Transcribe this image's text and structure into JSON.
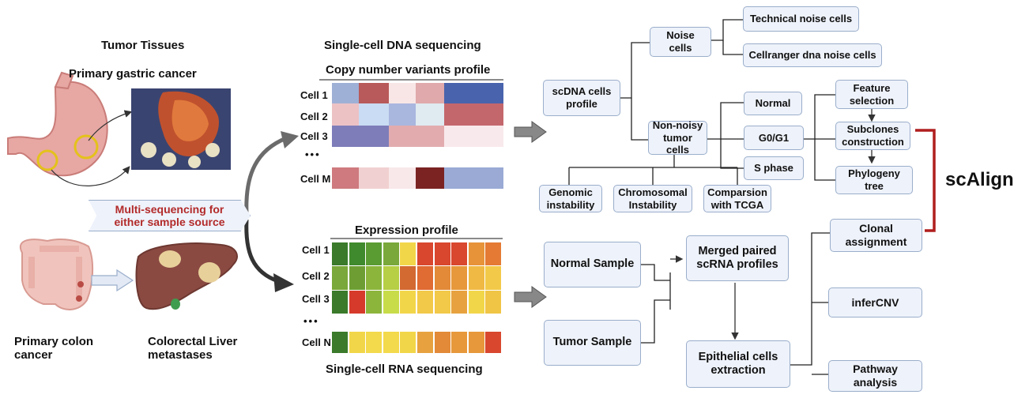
{
  "left": {
    "tumor_tissues": "Tumor Tissues",
    "primary_gastric": "Primary gastric cancer",
    "banner": "Multi-sequencing for\neither sample source",
    "primary_colon": "Primary colon\ncancer",
    "colorectal_liver": "Colorectal Liver\nmetastases"
  },
  "dna": {
    "title": "Single-cell DNA sequencing",
    "subtitle": "Copy number variants profile",
    "rows": [
      "Cell 1",
      "Cell 2",
      "Cell 3",
      "Cell M"
    ],
    "ellipsis": "•••"
  },
  "rna": {
    "title": "Single-cell RNA sequencing",
    "subtitle": "Expression profile",
    "rows": [
      "Cell 1",
      "Cell 2",
      "Cell 3",
      "Cell N"
    ],
    "ellipsis": "•••"
  },
  "flow": {
    "scdna": "scDNA cells\nprofile",
    "noise": "Noise\ncells",
    "technical_noise": "Technical noise cells",
    "cellranger_noise": "Cellranger dna noise cells",
    "non_noisy": "Non-noisy\ntumor cells",
    "normal": "Normal",
    "g0g1": "G0/G1",
    "s_phase": "S phase",
    "feature_selection": "Feature\nselection",
    "subclones": "Subclones\nconstruction",
    "phylogeny": "Phylogeny\ntree",
    "genomic": "Genomic\ninstability",
    "chromosomal": "Chromosomal\nInstability",
    "comparsion": "Comparsion\nwith TCGA",
    "normal_sample": "Normal Sample",
    "tumor_sample": "Tumor Sample",
    "merged": "Merged paired\nscRNA profiles",
    "epithelial": "Epithelial cells\nextraction",
    "clonal": "Clonal\nassignment",
    "infercnv": "inferCNV",
    "pathway": "Pathway\nanalysis",
    "scalign": "scAlign"
  },
  "colors": {
    "box_fill": "#eef2fa",
    "box_border": "#9aaecb",
    "banner_text": "#b22a2a",
    "bracket": "#b01e1e"
  }
}
